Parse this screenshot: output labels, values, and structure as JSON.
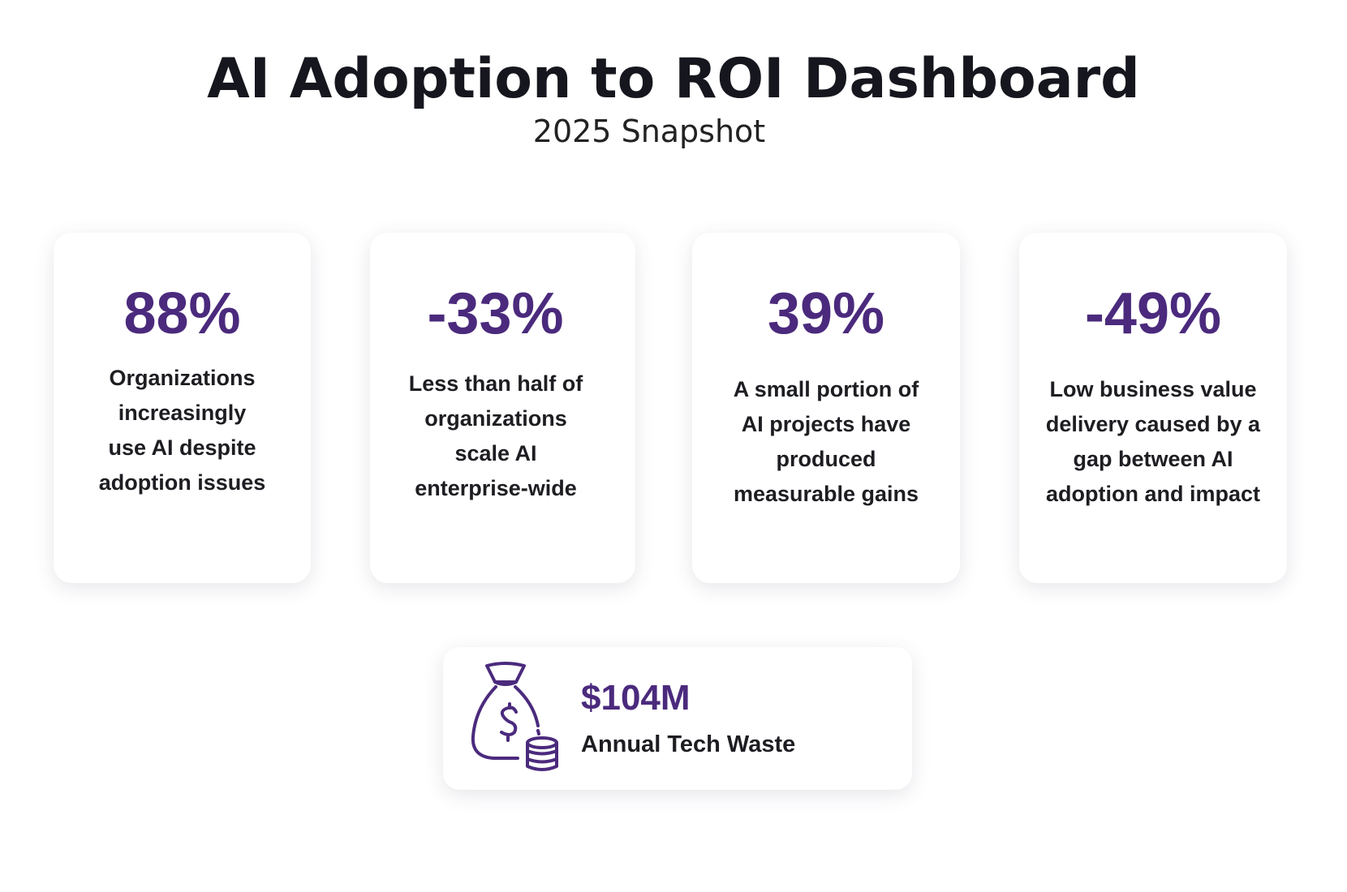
{
  "header": {
    "title": "AI Adoption to ROI Dashboard",
    "subtitle": "2025 Snapshot"
  },
  "colors": {
    "accent": "#4b2a7d",
    "text": "#1d1d22"
  },
  "cards": [
    {
      "value": "88%",
      "description": "Organizations increasingly use AI despite adoption issues"
    },
    {
      "value": "-33%",
      "description": "Less than half of organizations scale AI enterprise-wide"
    },
    {
      "value": "39%",
      "description": "A small portion of AI projects have produced measurable gains"
    },
    {
      "value": "-49%",
      "description": "Low business value delivery caused by a gap between AI adoption and impact"
    }
  ],
  "summary": {
    "icon": "money-bag-coins-icon",
    "value": "$104M",
    "label": "Annual Tech Waste"
  }
}
